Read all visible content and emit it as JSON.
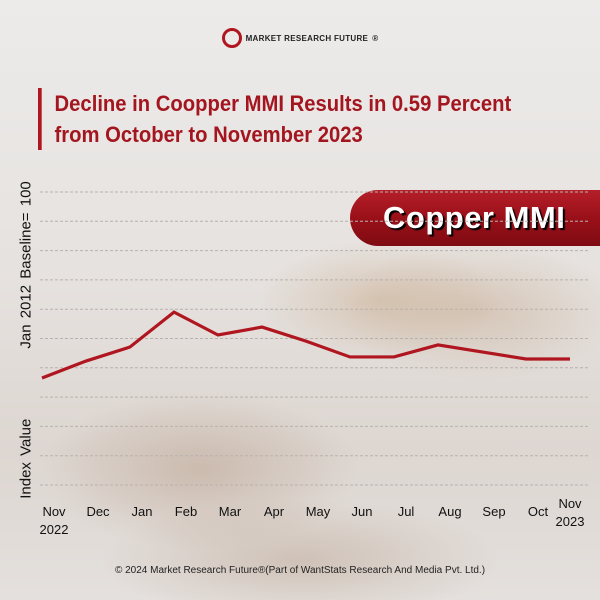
{
  "brand": {
    "name": "MARKET RESEARCH FUTURE",
    "registered": "®"
  },
  "headline": {
    "line1": "Decline in Coopper MMI Results in 0.59 Percent",
    "line2": "from October to November 2023"
  },
  "badge": {
    "label": "Copper MMI"
  },
  "footer": {
    "text": "© 2024 Market Research Future®(Part of WantStats Research And Media Pvt. Ltd.)"
  },
  "colors": {
    "accent": "#b0161f",
    "line": "#b0161f"
  },
  "chart_data": {
    "type": "line",
    "title": "Copper MMI",
    "ylabel": "Index Value   Jan 2012 Baseline= 100",
    "ylabel_parts": [
      "Index Value",
      "Jan 2012 Baseline= 100"
    ],
    "xlabel": "",
    "categories": [
      "Nov\n2022",
      "Dec",
      "Jan",
      "Feb",
      "Mar",
      "Apr",
      "May",
      "Jun",
      "Jul",
      "Aug",
      "Sep",
      "Oct",
      "Nov\n2023"
    ],
    "category_lines": [
      [
        "Nov",
        "2022"
      ],
      [
        "Dec"
      ],
      [
        "Jan"
      ],
      [
        "Feb"
      ],
      [
        "Mar"
      ],
      [
        "Apr"
      ],
      [
        "May"
      ],
      [
        "Jun"
      ],
      [
        "Jul"
      ],
      [
        "Aug"
      ],
      [
        "Sep"
      ],
      [
        "Oct"
      ],
      [
        "Nov",
        "2023"
      ]
    ],
    "series": [
      {
        "name": "Copper MMI",
        "values": [
          3.65,
          4.23,
          4.71,
          5.9,
          5.12,
          5.39,
          4.91,
          4.37,
          4.37,
          4.78,
          4.54,
          4.3,
          4.3
        ]
      }
    ],
    "ylim": [
      0,
      10
    ],
    "y_units_note": "relative gridline units; no tick values printed",
    "grid": true,
    "gridline_count": 11,
    "legend": "none"
  }
}
